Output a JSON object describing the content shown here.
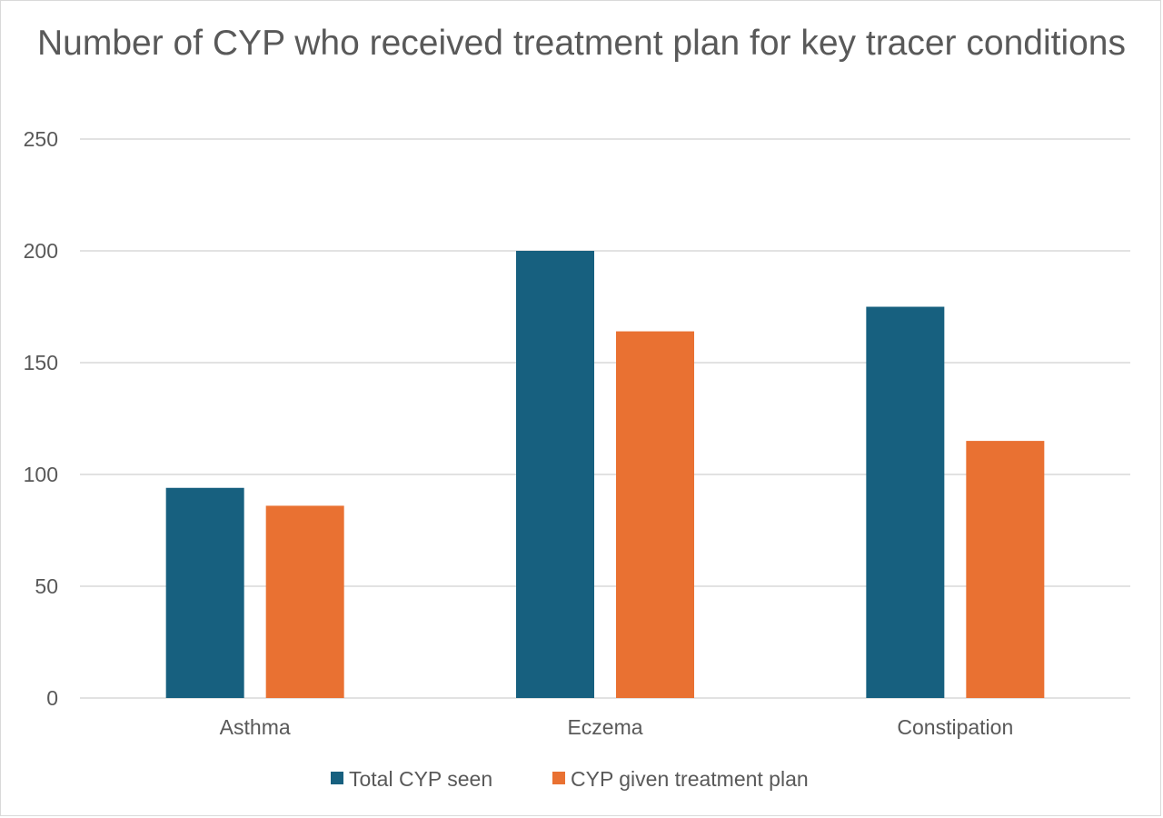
{
  "chart_data": {
    "type": "bar",
    "title": "Number of CYP who received treatment plan for key tracer conditions",
    "xlabel": "",
    "ylabel": "",
    "categories": [
      "Asthma",
      "Eczema",
      "Constipation"
    ],
    "series": [
      {
        "name": "Total CYP seen",
        "color": "#17607f",
        "values": [
          94,
          200,
          175
        ]
      },
      {
        "name": "CYP given treatment plan",
        "color": "#e97132",
        "values": [
          86,
          164,
          115
        ]
      }
    ],
    "ylim": [
      0,
      250
    ],
    "yticks": [
      0,
      50,
      100,
      150,
      200,
      250
    ],
    "grid": true,
    "legend_position": "bottom"
  }
}
